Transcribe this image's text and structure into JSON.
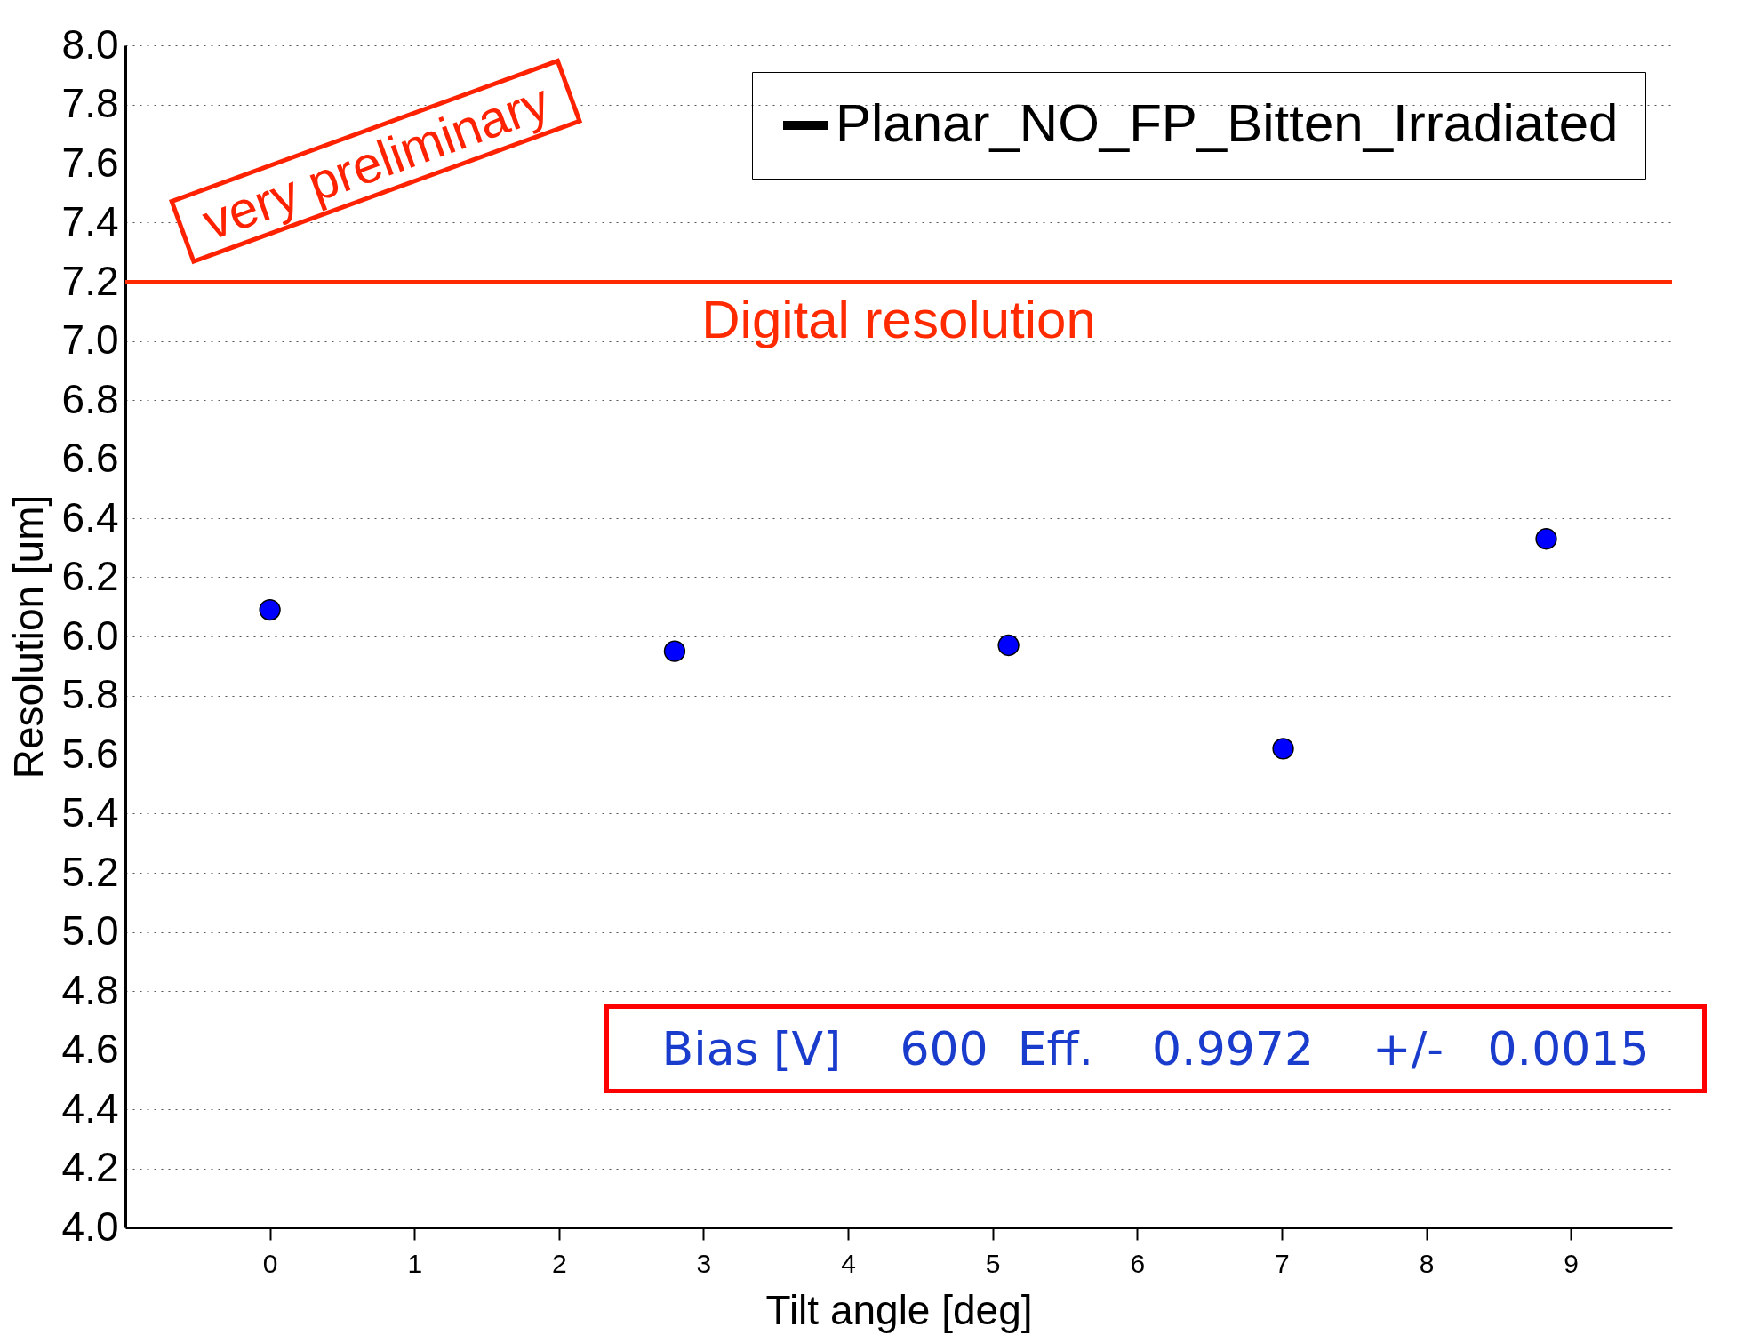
{
  "chart_data": {
    "type": "scatter",
    "xlabel": "Tilt angle [deg]",
    "ylabel": "Resolution [um]",
    "x": [
      0,
      2.8,
      5.11,
      7.01,
      8.83
    ],
    "series": [
      {
        "name": "Planar_NO_FP_Bitten_Irradiated",
        "color": "#0000ff",
        "values": [
          6.09,
          5.95,
          5.97,
          5.62,
          6.33
        ]
      }
    ],
    "xlim": [
      -1,
      9.7
    ],
    "xticks": [
      0,
      1,
      2,
      3,
      4,
      5,
      6,
      7,
      8,
      9
    ],
    "ylim": [
      4.0,
      8.0
    ],
    "yticks": [
      {
        "value": 4.0,
        "label": "4.0"
      },
      {
        "value": 4.2,
        "label": "4.2"
      },
      {
        "value": 4.4,
        "label": "4.4"
      },
      {
        "value": 4.6,
        "label": "4.6"
      },
      {
        "value": 4.8,
        "label": "4.8"
      },
      {
        "value": 5.0,
        "label": "5.0"
      },
      {
        "value": 5.2,
        "label": "5.2"
      },
      {
        "value": 5.4,
        "label": "5.4"
      },
      {
        "value": 5.6,
        "label": "5.6"
      },
      {
        "value": 5.8,
        "label": "5.8"
      },
      {
        "value": 6.0,
        "label": "6.0"
      },
      {
        "value": 6.2,
        "label": "6.2"
      },
      {
        "value": 6.4,
        "label": "6.4"
      },
      {
        "value": 6.6,
        "label": "6.6"
      },
      {
        "value": 6.8,
        "label": "6.8"
      },
      {
        "value": 7.0,
        "label": "7.0"
      },
      {
        "value": 7.2,
        "label": "7.2"
      },
      {
        "value": 7.4,
        "label": "7.4"
      },
      {
        "value": 7.6,
        "label": "7.6"
      },
      {
        "value": 7.8,
        "label": "7.8"
      },
      {
        "value": 8.0,
        "label": "8.0"
      }
    ],
    "ref_lines": [
      {
        "axis": "y",
        "value": 7.2,
        "label": "Digital resolution",
        "color": "#ff2a00"
      }
    ],
    "annotations": [
      "Bias [V]    600  Eff.    0.9972    +/-   0.0015",
      "very preliminary"
    ],
    "grid": "y",
    "legend": "top right",
    "marker": "circle"
  }
}
